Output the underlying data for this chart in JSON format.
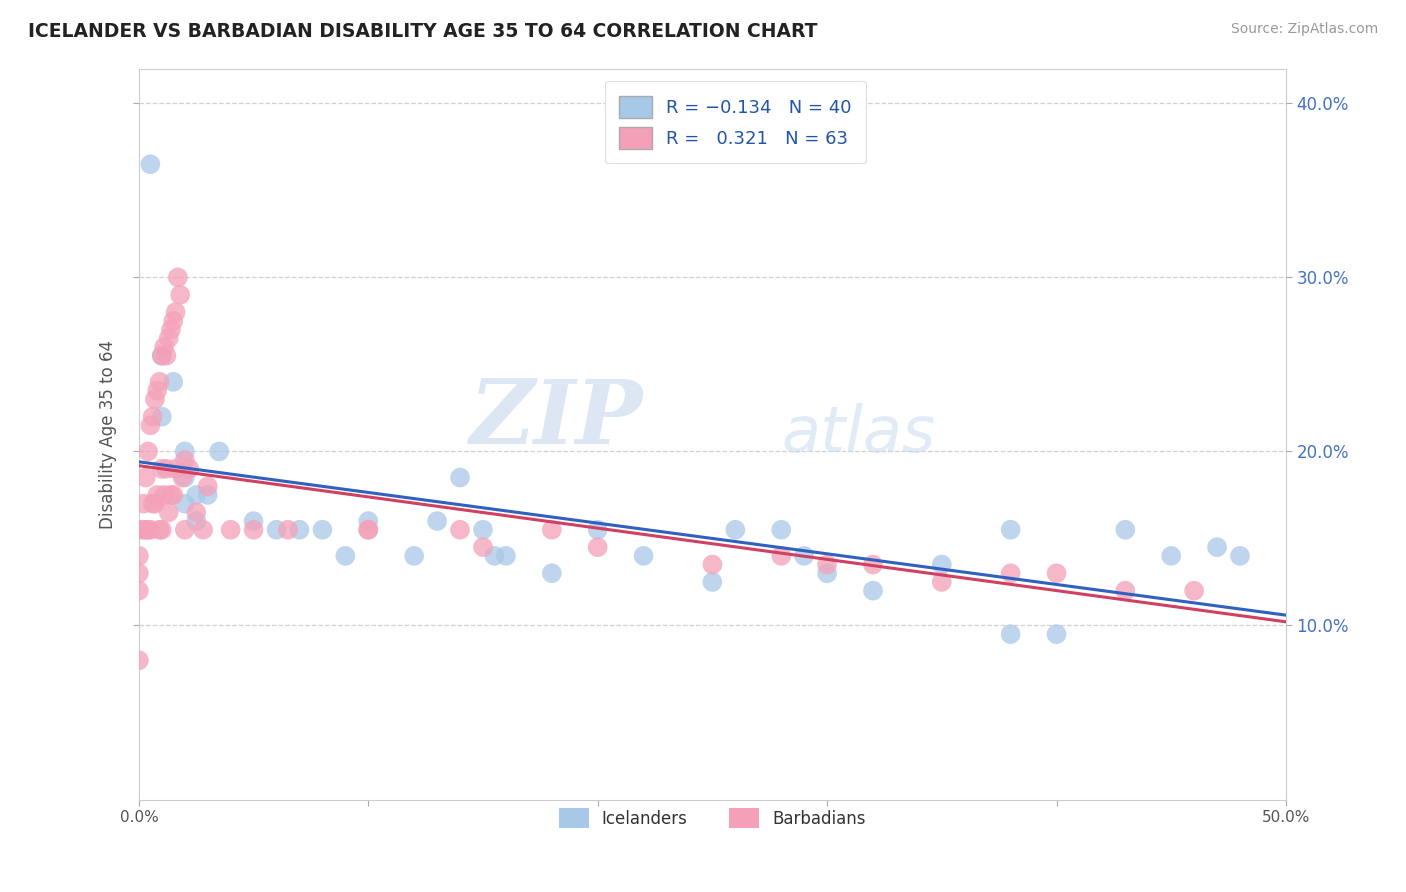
{
  "title": "ICELANDER VS BARBADIAN DISABILITY AGE 35 TO 64 CORRELATION CHART",
  "source": "Source: ZipAtlas.com",
  "ylabel": "Disability Age 35 to 64",
  "xlim": [
    0.0,
    0.5
  ],
  "ylim": [
    0.0,
    0.42
  ],
  "xticks": [
    0.0,
    0.1,
    0.2,
    0.3,
    0.4,
    0.5
  ],
  "xticklabels": [
    "0.0%",
    "",
    "",
    "",
    "",
    "50.0%"
  ],
  "yticks_right": [
    0.1,
    0.2,
    0.3,
    0.4
  ],
  "yticklabels_right": [
    "10.0%",
    "20.0%",
    "30.0%",
    "40.0%"
  ],
  "r_icelander": -0.134,
  "n_icelander": 40,
  "r_barbadian": 0.321,
  "n_barbadian": 63,
  "icelander_color": "#a8c8e8",
  "barbadian_color": "#f4a0b8",
  "line_icelander_color": "#3060c0",
  "line_barbadian_color": "#d04060",
  "watermark_zip": "ZIP",
  "watermark_atlas": "atlas",
  "icelander_points_x": [
    0.005,
    0.01,
    0.01,
    0.015,
    0.02,
    0.02,
    0.02,
    0.025,
    0.025,
    0.03,
    0.035,
    0.05,
    0.06,
    0.07,
    0.08,
    0.09,
    0.1,
    0.13,
    0.14,
    0.15,
    0.155,
    0.16,
    0.2,
    0.22,
    0.26,
    0.28,
    0.29,
    0.32,
    0.38,
    0.38,
    0.43,
    0.45,
    0.47,
    0.48,
    0.25,
    0.3,
    0.35,
    0.4,
    0.12,
    0.18
  ],
  "icelander_points_y": [
    0.365,
    0.255,
    0.22,
    0.24,
    0.2,
    0.185,
    0.17,
    0.175,
    0.16,
    0.175,
    0.2,
    0.16,
    0.155,
    0.155,
    0.155,
    0.14,
    0.16,
    0.16,
    0.185,
    0.155,
    0.14,
    0.14,
    0.155,
    0.14,
    0.155,
    0.155,
    0.14,
    0.12,
    0.155,
    0.095,
    0.155,
    0.14,
    0.145,
    0.14,
    0.125,
    0.13,
    0.135,
    0.095,
    0.14,
    0.13
  ],
  "barbadian_points_x": [
    0.0,
    0.0,
    0.0,
    0.0,
    0.0,
    0.002,
    0.002,
    0.003,
    0.003,
    0.004,
    0.004,
    0.005,
    0.005,
    0.006,
    0.006,
    0.007,
    0.007,
    0.008,
    0.008,
    0.009,
    0.009,
    0.01,
    0.01,
    0.01,
    0.011,
    0.011,
    0.012,
    0.012,
    0.013,
    0.013,
    0.014,
    0.014,
    0.015,
    0.015,
    0.016,
    0.016,
    0.017,
    0.018,
    0.019,
    0.02,
    0.02,
    0.022,
    0.025,
    0.028,
    0.03,
    0.04,
    0.05,
    0.065,
    0.1,
    0.1,
    0.14,
    0.15,
    0.18,
    0.2,
    0.25,
    0.28,
    0.3,
    0.32,
    0.35,
    0.38,
    0.4,
    0.43,
    0.46
  ],
  "barbadian_points_y": [
    0.155,
    0.14,
    0.13,
    0.12,
    0.08,
    0.17,
    0.155,
    0.185,
    0.155,
    0.2,
    0.155,
    0.215,
    0.155,
    0.22,
    0.17,
    0.23,
    0.17,
    0.235,
    0.175,
    0.24,
    0.155,
    0.255,
    0.19,
    0.155,
    0.26,
    0.175,
    0.255,
    0.19,
    0.265,
    0.165,
    0.27,
    0.175,
    0.275,
    0.175,
    0.28,
    0.19,
    0.3,
    0.29,
    0.185,
    0.195,
    0.155,
    0.19,
    0.165,
    0.155,
    0.18,
    0.155,
    0.155,
    0.155,
    0.155,
    0.155,
    0.155,
    0.145,
    0.155,
    0.145,
    0.135,
    0.14,
    0.135,
    0.135,
    0.125,
    0.13,
    0.13,
    0.12,
    0.12
  ]
}
